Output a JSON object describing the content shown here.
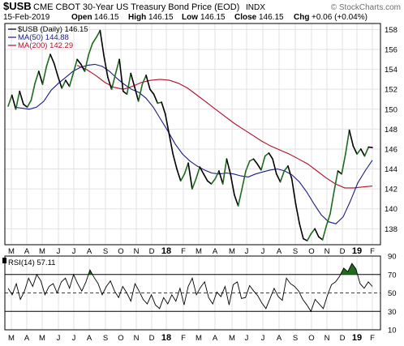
{
  "header": {
    "symbol": "$USB",
    "name": "CME CBOT 30-Year US Treasury Bond Price (EOD)",
    "exchange": "INDX",
    "copyright": "© StockCharts.com",
    "date": "15-Feb-2019",
    "open_label": "Open",
    "open": "146.15",
    "high_label": "High",
    "high": "146.15",
    "low_label": "Low",
    "low": "146.15",
    "close_label": "Close",
    "close": "146.15",
    "chg_label": "Chg",
    "chg": "+0.06 (+0.04%)"
  },
  "legend": {
    "price": "$USB (Daily) 146.15",
    "ma50": "MA(50) 144.88",
    "ma200": "MA(200) 142.29",
    "rsi": "RSI(14) 57.11"
  },
  "colors": {
    "price_up": "#1e6b1e",
    "price_down": "#000000",
    "ma50": "#1a1a8c",
    "ma200": "#b0102a",
    "grid": "#e2e2e2",
    "rsi_line": "#000000",
    "rsi_fill": "#1e6b1e"
  },
  "chart_data": [
    {
      "type": "line",
      "title": "$USB CME CBOT 30-Year US Treasury Bond Price (EOD)",
      "x_tick_labels": [
        "M",
        "A",
        "M",
        "J",
        "J",
        "A",
        "S",
        "O",
        "N",
        "D",
        "18",
        "F",
        "M",
        "A",
        "M",
        "J",
        "J",
        "A",
        "S",
        "O",
        "N",
        "D",
        "19",
        "F"
      ],
      "y_tick_labels": [
        "138",
        "140",
        "142",
        "144",
        "146",
        "148",
        "150",
        "152",
        "154",
        "156",
        "158"
      ],
      "ylim": [
        136.4,
        158.6
      ],
      "grid": true,
      "series": [
        {
          "name": "$USB (Daily)",
          "values": [
            150.3,
            151.4,
            150.0,
            151.8,
            150.5,
            150.2,
            150.9,
            152.6,
            153.8,
            152.5,
            154.3,
            155.5,
            154.6,
            153.3,
            152.1,
            152.9,
            152.3,
            153.6,
            155.0,
            154.5,
            153.8,
            155.5,
            156.6,
            157.2,
            157.9,
            155.3,
            153.2,
            152.0,
            153.5,
            155.0,
            151.8,
            151.5,
            153.6,
            152.2,
            150.8,
            152.5,
            153.4,
            152.0,
            151.5,
            150.6,
            150.7,
            149.5,
            147.5,
            145.5,
            144.0,
            142.8,
            143.5,
            144.6,
            142.0,
            143.0,
            144.2,
            143.5,
            142.8,
            142.5,
            143.0,
            143.8,
            142.5,
            145.0,
            143.5,
            141.4,
            140.3,
            142.0,
            143.8,
            144.8,
            145.0,
            144.5,
            143.9,
            145.3,
            145.6,
            145.0,
            143.5,
            142.7,
            143.8,
            144.3,
            143.0,
            140.5,
            138.5,
            137.0,
            136.8,
            137.5,
            138.0,
            137.2,
            136.9,
            138.3,
            139.5,
            141.7,
            143.8,
            143.5,
            145.5,
            147.9,
            146.3,
            145.5,
            146.0,
            145.3,
            146.2,
            146.15
          ]
        },
        {
          "name": "MA(50)",
          "values": [
            150.2,
            150.1,
            150.0,
            150.2,
            150.8,
            151.9,
            152.6,
            153.2,
            153.8,
            154.2,
            154.4,
            154.5,
            154.3,
            153.8,
            153.1,
            152.5,
            152.0,
            151.7,
            151.1,
            150.2,
            149.0,
            147.8,
            146.5,
            145.5,
            144.8,
            144.3,
            143.9,
            143.6,
            143.5,
            143.6,
            143.5,
            143.3,
            143.2,
            143.5,
            143.7,
            143.9,
            144.0,
            143.8,
            143.4,
            142.7,
            141.7,
            140.5,
            139.4,
            138.7,
            138.5,
            139.2,
            140.8,
            142.6,
            143.8,
            144.88
          ]
        },
        {
          "name": "MA(200)",
          "values": [
            154.4,
            154.0,
            153.4,
            152.7,
            152.2,
            152.0,
            152.3,
            152.7,
            152.9,
            153.0,
            152.9,
            152.6,
            152.1,
            151.4,
            150.7,
            150.0,
            149.3,
            148.6,
            148.0,
            147.4,
            146.8,
            146.3,
            145.9,
            145.5,
            145.0,
            144.5,
            143.8,
            143.1,
            142.5,
            142.1,
            142.1,
            142.2,
            142.29
          ]
        }
      ]
    },
    {
      "type": "line",
      "title": "RSI(14)",
      "x_tick_labels": [
        "M",
        "A",
        "M",
        "J",
        "J",
        "A",
        "S",
        "O",
        "N",
        "D",
        "18",
        "F",
        "M",
        "A",
        "M",
        "J",
        "J",
        "A",
        "S",
        "O",
        "N",
        "D",
        "19",
        "F"
      ],
      "y_tick_labels": [
        "90",
        "70",
        "50",
        "30",
        "10"
      ],
      "ylim": [
        10,
        90
      ],
      "reference_lines": [
        30,
        50,
        70
      ],
      "series": [
        {
          "name": "RSI(14)",
          "values": [
            55,
            48,
            60,
            43,
            52,
            66,
            57,
            70,
            63,
            48,
            57,
            60,
            50,
            62,
            66,
            55,
            70,
            60,
            52,
            62,
            75,
            67,
            60,
            48,
            57,
            63,
            52,
            45,
            57,
            50,
            41,
            60,
            52,
            43,
            38,
            48,
            37,
            33,
            45,
            38,
            48,
            41,
            55,
            37,
            57,
            66,
            48,
            56,
            62,
            45,
            38,
            51,
            46,
            57,
            37,
            59,
            62,
            44,
            45,
            58,
            52,
            47,
            39,
            33,
            44,
            55,
            46,
            42,
            66,
            60,
            57,
            52,
            43,
            37,
            30,
            43,
            38,
            33,
            47,
            59,
            62,
            68,
            77,
            73,
            82,
            76,
            60,
            55,
            62,
            57
          ]
        }
      ]
    }
  ]
}
